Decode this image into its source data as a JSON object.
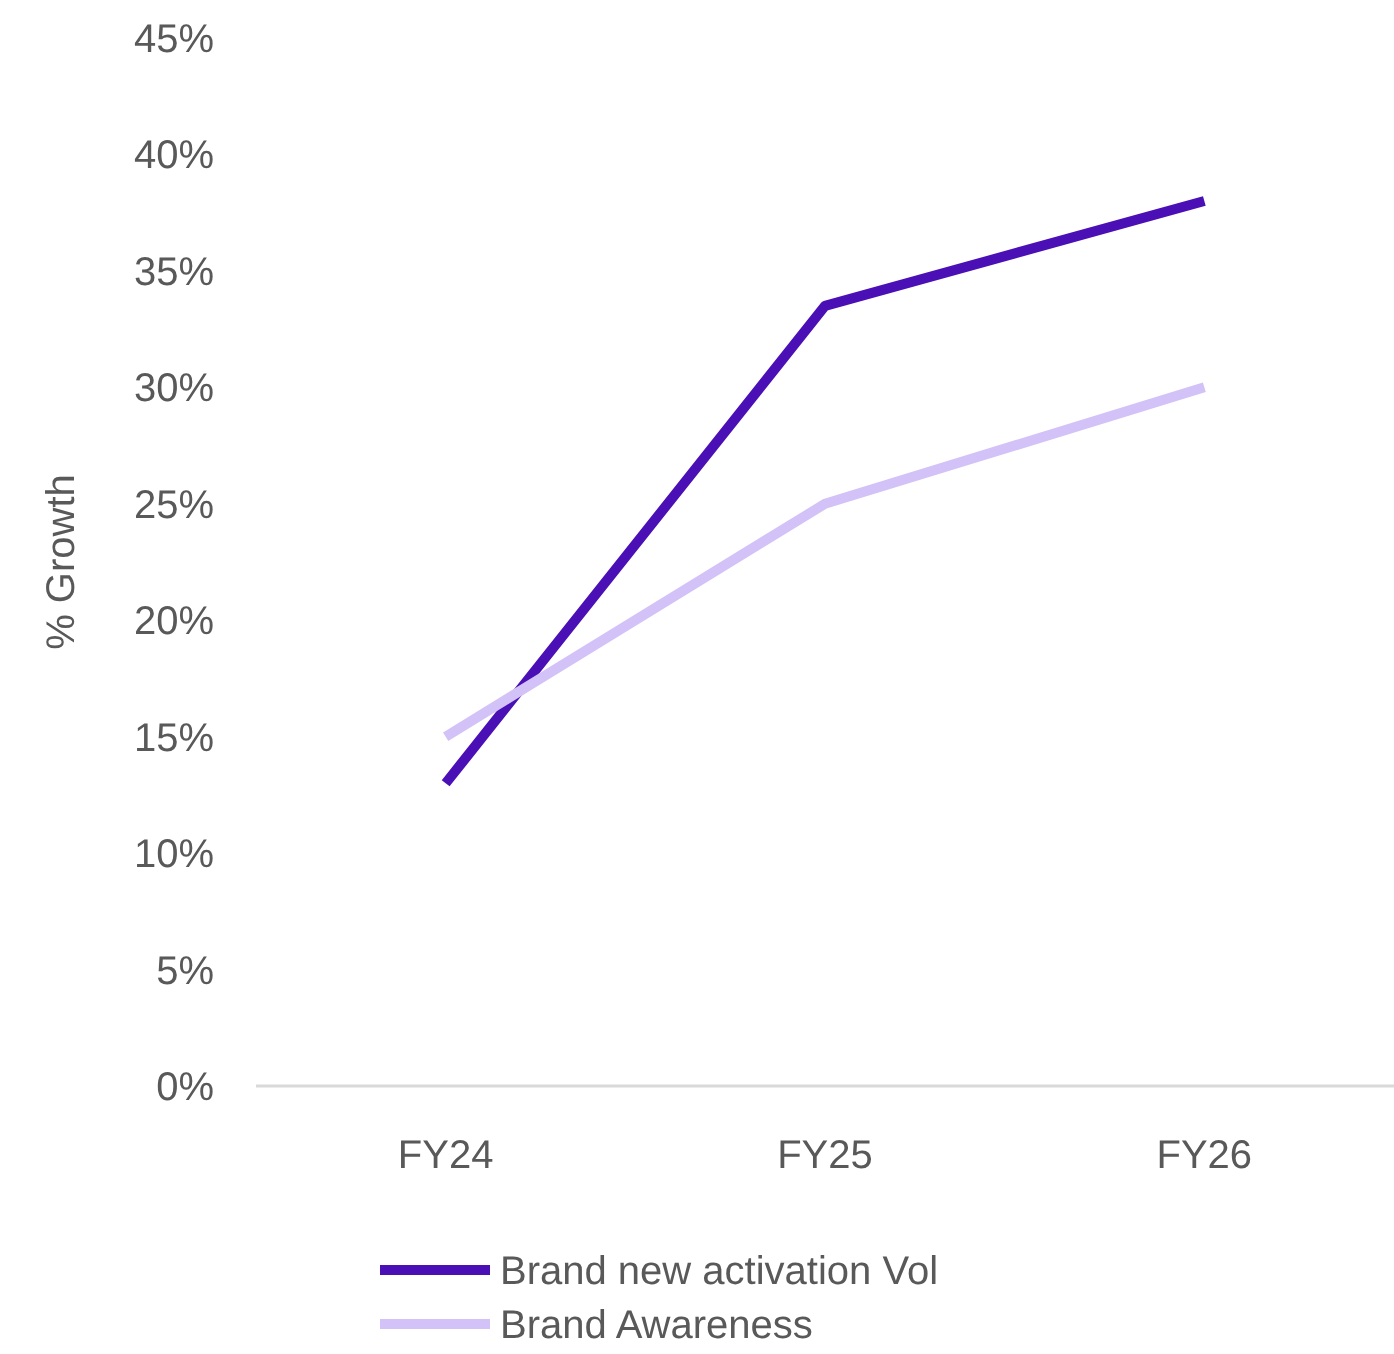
{
  "chart_data": {
    "type": "line",
    "ylabel": "% Growth",
    "categories": [
      "FY24",
      "FY25",
      "FY26"
    ],
    "series": [
      {
        "name": "Brand new activation Vol",
        "color": "#4a0fb5",
        "values": [
          13,
          33.5,
          38
        ]
      },
      {
        "name": "Brand Awareness",
        "color": "#d3c2f7",
        "values": [
          15,
          25,
          30
        ]
      }
    ],
    "ylim": [
      0,
      45
    ],
    "yticks": [
      {
        "value": 0,
        "label": "0%"
      },
      {
        "value": 5,
        "label": "5%"
      },
      {
        "value": 10,
        "label": "10%"
      },
      {
        "value": 15,
        "label": "15%"
      },
      {
        "value": 20,
        "label": "20%"
      },
      {
        "value": 25,
        "label": "25%"
      },
      {
        "value": 30,
        "label": "30%"
      },
      {
        "value": 35,
        "label": "35%"
      },
      {
        "value": 40,
        "label": "40%"
      },
      {
        "value": 45,
        "label": "45%"
      }
    ],
    "grid": false,
    "legend": "bottom"
  }
}
